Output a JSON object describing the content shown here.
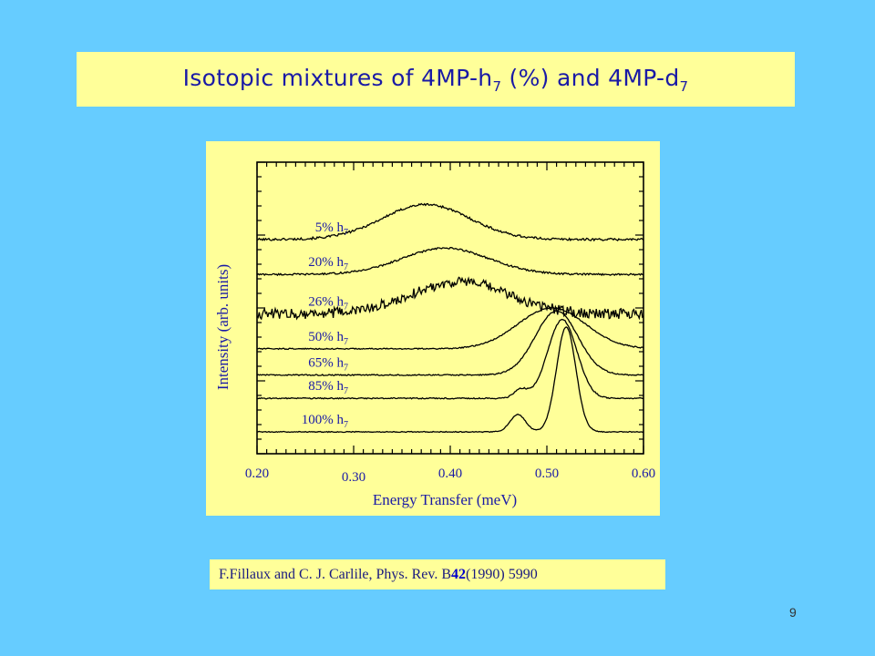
{
  "slide": {
    "title_prefix": "Isotopic mixtures of 4MP-h",
    "title_sub1": "7",
    "title_middle": " (%) and 4MP-d",
    "title_sub2": "7",
    "citation_prefix": "F.Fillaux and C. J. Carlile, Phys. Rev. B ",
    "citation_volume": "42",
    "citation_suffix": " (1990) 5990",
    "page_number": "9"
  },
  "chart_data": {
    "type": "line",
    "title": "",
    "xlabel": "Energy Transfer (meV)",
    "ylabel": "Intensity (arb. units)",
    "xlim": [
      0.2,
      0.6
    ],
    "x_ticks": [
      {
        "value": 0.2,
        "label": "0.20"
      },
      {
        "value": 0.3,
        "label": "0.30"
      },
      {
        "value": 0.4,
        "label": "0.40"
      },
      {
        "value": 0.5,
        "label": "0.50"
      },
      {
        "value": 0.6,
        "label": "0.60"
      }
    ],
    "grid": false,
    "colors": {
      "axis": "#000000",
      "label": "#1a1aa6",
      "background": "#ffff99"
    },
    "series": [
      {
        "name": "5% h7",
        "label": "5% h",
        "sub": "7",
        "baseline": 0.735,
        "noise": 0.004,
        "peaks": [
          {
            "center": 0.375,
            "width": 0.045,
            "height": 0.12
          }
        ]
      },
      {
        "name": "20% h7",
        "label": "20% h",
        "sub": "7",
        "baseline": 0.615,
        "noise": 0.003,
        "peaks": [
          {
            "center": 0.395,
            "width": 0.045,
            "height": 0.09
          }
        ]
      },
      {
        "name": "26% h7",
        "label": "26% h",
        "sub": "7",
        "baseline": 0.48,
        "noise": 0.018,
        "peaks": [
          {
            "center": 0.41,
            "width": 0.05,
            "height": 0.11
          }
        ]
      },
      {
        "name": "50% h7",
        "label": "50% h",
        "sub": "7",
        "baseline": 0.36,
        "noise": 0.002,
        "peaks": [
          {
            "center": 0.505,
            "width": 0.035,
            "height": 0.14
          }
        ]
      },
      {
        "name": "65% h7",
        "label": "65% h",
        "sub": "7",
        "baseline": 0.27,
        "noise": 0.002,
        "peaks": [
          {
            "center": 0.51,
            "width": 0.022,
            "height": 0.22
          }
        ]
      },
      {
        "name": "85% h7",
        "label": "85% h",
        "sub": "7",
        "baseline": 0.19,
        "noise": 0.002,
        "peaks": [
          {
            "center": 0.473,
            "width": 0.007,
            "height": 0.03
          },
          {
            "center": 0.516,
            "width": 0.015,
            "height": 0.27
          }
        ]
      },
      {
        "name": "100% h7",
        "label": "100% h",
        "sub": "7",
        "baseline": 0.075,
        "noise": 0.0015,
        "peaks": [
          {
            "center": 0.47,
            "width": 0.008,
            "height": 0.06
          },
          {
            "center": 0.52,
            "width": 0.01,
            "height": 0.36
          }
        ]
      }
    ]
  }
}
